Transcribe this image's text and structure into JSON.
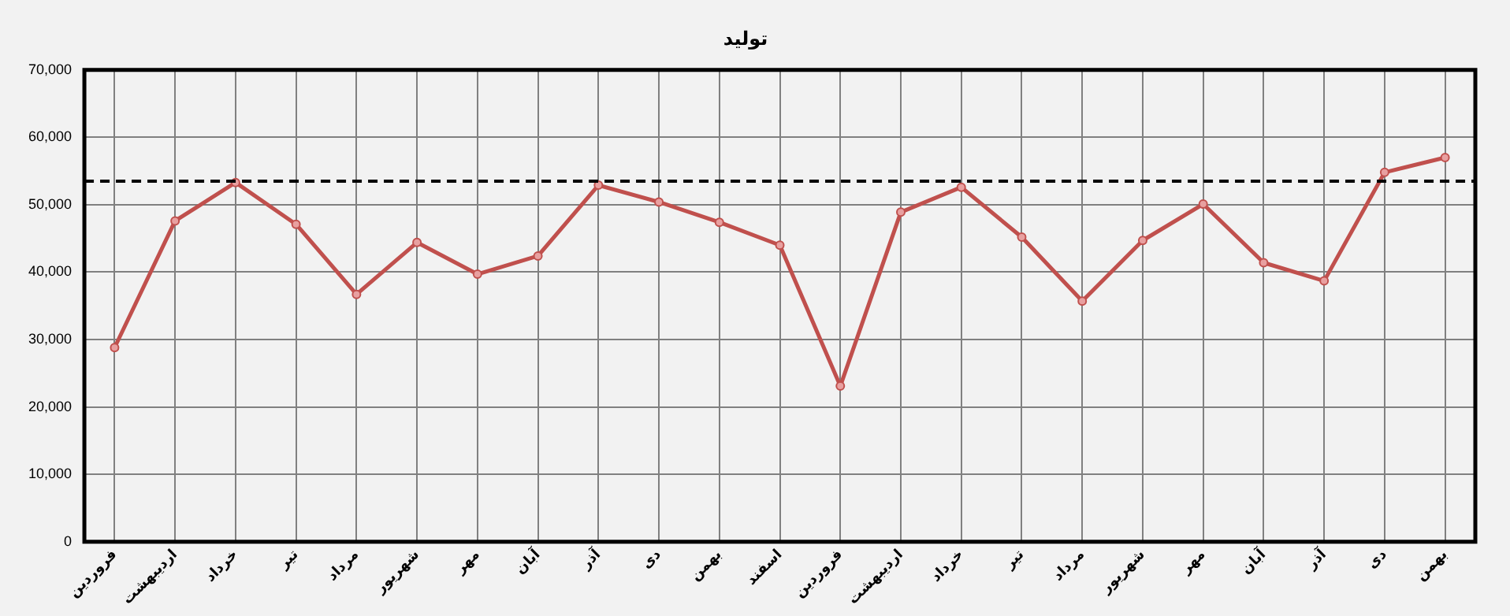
{
  "chart_data": {
    "type": "line",
    "title": "تولید",
    "categories": [
      "فروردین",
      "اردیبهشت",
      "خرداد",
      "تیر",
      "مرداد",
      "شهریور",
      "مهر",
      "آبان",
      "آذر",
      "دی",
      "بهمن",
      "اسفند",
      "فروردین",
      "اردیبهشت",
      "خرداد",
      "تیر",
      "مرداد",
      "شهریور",
      "مهر",
      "آبان",
      "آذر",
      "دی",
      "بهمن"
    ],
    "series": [
      {
        "color": "#c0504d",
        "values": [
          28800,
          47600,
          53300,
          47100,
          36700,
          44400,
          39700,
          42400,
          52900,
          50400,
          47400,
          44000,
          23100,
          48900,
          52600,
          45200,
          35700,
          44700,
          50100,
          41400,
          38700,
          54800,
          57000
        ]
      }
    ],
    "ylim": [
      0,
      70000
    ],
    "yticks": [
      0,
      {
        "value": 10000,
        "label": "10,000"
      },
      {
        "value": 20000,
        "label": "20,000"
      },
      {
        "value": 30000,
        "label": "30,000"
      },
      {
        "value": 40000,
        "label": "40,000"
      },
      {
        "value": 50000,
        "label": "50,000"
      },
      {
        "value": 60000,
        "label": "60,000"
      },
      {
        "value": 70000,
        "label": "70,000"
      }
    ],
    "ref_lines": [
      {
        "axis": "y",
        "value": 53500,
        "color": "#000000",
        "line_style": "dashed"
      }
    ],
    "grid": true,
    "legend": false,
    "marker": "circle",
    "line_style": "solid"
  }
}
